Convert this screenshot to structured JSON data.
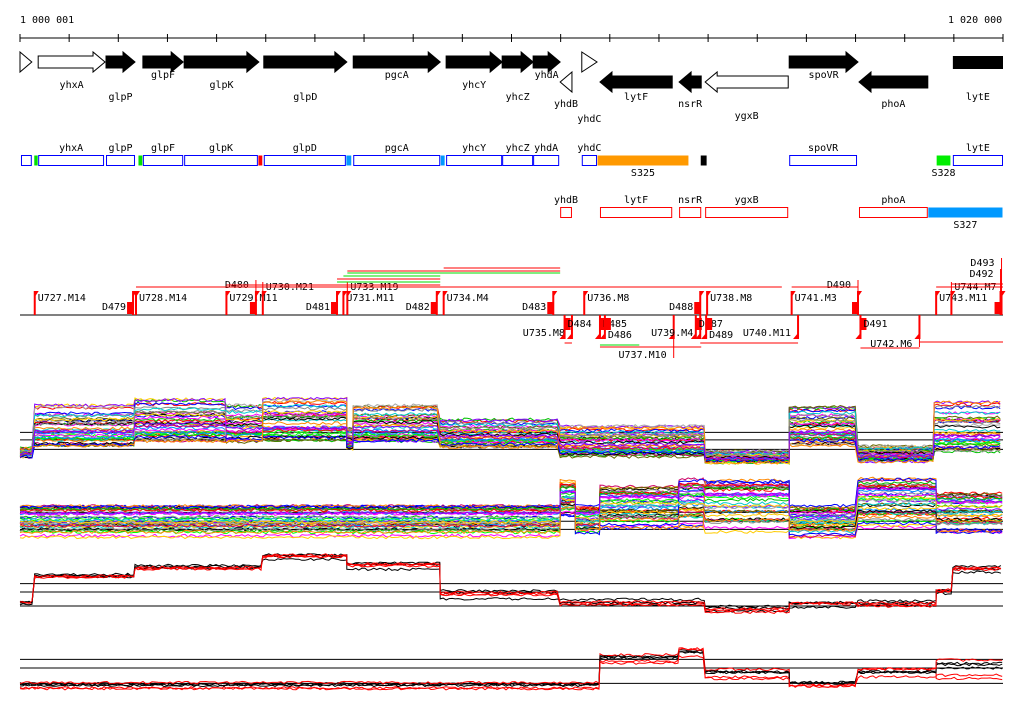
{
  "ruler": {
    "start_label": "1 000 001",
    "end_label": "1 020 000",
    "ticks_kb": 20
  },
  "genes": [
    {
      "name": "",
      "start": 0.0,
      "end": 0.24,
      "strand": "+",
      "style": "open"
    },
    {
      "name": "yhxA",
      "start": 0.37,
      "end": 1.73,
      "strand": "+",
      "style": "open",
      "label_row": 1
    },
    {
      "name": "glpP",
      "start": 1.75,
      "end": 2.34,
      "strand": "+",
      "style": "solid",
      "label_row": 2
    },
    {
      "name": "glpF",
      "start": 2.5,
      "end": 3.32,
      "strand": "+",
      "style": "solid",
      "label_row": 0
    },
    {
      "name": "glpK",
      "start": 3.34,
      "end": 4.86,
      "strand": "+",
      "style": "solid",
      "label_row": 1
    },
    {
      "name": "glpD",
      "start": 4.96,
      "end": 6.65,
      "strand": "+",
      "style": "solid",
      "label_row": 2
    },
    {
      "name": "pgcA",
      "start": 6.78,
      "end": 8.55,
      "strand": "+",
      "style": "solid",
      "label_row": 0
    },
    {
      "name": "yhcY",
      "start": 8.67,
      "end": 9.81,
      "strand": "+",
      "style": "solid",
      "label_row": 1
    },
    {
      "name": "yhcZ",
      "start": 9.81,
      "end": 10.44,
      "strand": "+",
      "style": "solid",
      "label_row": 2
    },
    {
      "name": "yhdA",
      "start": 10.44,
      "end": 10.99,
      "strand": "+",
      "style": "solid",
      "label_row": 0
    },
    {
      "name": "yhdB",
      "start": 10.99,
      "end": 11.23,
      "strand": "-",
      "style": "open",
      "label_row": 3
    },
    {
      "name": "yhdC",
      "start": 11.43,
      "end": 11.74,
      "strand": "+",
      "style": "open",
      "label_row": 2
    },
    {
      "name": "lytF",
      "start": 11.8,
      "end": 13.27,
      "strand": "-",
      "style": "solid",
      "label_row": 2
    },
    {
      "name": "nsrR",
      "start": 13.41,
      "end": 13.86,
      "strand": "-",
      "style": "solid",
      "label_row": 3
    },
    {
      "name": "ygxB",
      "start": 13.94,
      "end": 15.63,
      "strand": "-",
      "style": "open",
      "label_row": 4
    },
    {
      "name": "spoVR",
      "start": 15.65,
      "end": 17.05,
      "strand": "+",
      "style": "solid",
      "label_row": 0
    },
    {
      "name": "phoA",
      "start": 17.07,
      "end": 18.47,
      "strand": "-",
      "style": "solid",
      "label_row": 3
    },
    {
      "name": "lytE",
      "start": 18.98,
      "end": 20.0,
      "strand": "+",
      "style": "bar",
      "label_row": 2
    }
  ],
  "fwd_features": [
    {
      "label": "",
      "start": 0.02,
      "end": 0.24,
      "fill": "none",
      "stroke": "#0000ff"
    },
    {
      "label": "",
      "start": 0.28,
      "end": 0.37,
      "fill": "#00e000",
      "stroke": "none"
    },
    {
      "label": "yhxA",
      "start": 0.37,
      "end": 1.71,
      "fill": "none",
      "stroke": "#0000ff"
    },
    {
      "label": "glpP",
      "start": 1.75,
      "end": 2.34,
      "fill": "none",
      "stroke": "#0000ff"
    },
    {
      "label": "",
      "start": 2.4,
      "end": 2.5,
      "fill": "#00e000",
      "stroke": "none"
    },
    {
      "label": "glpF",
      "start": 2.5,
      "end": 3.32,
      "fill": "none",
      "stroke": "#0000ff"
    },
    {
      "label": "glpK",
      "start": 3.34,
      "end": 4.84,
      "fill": "none",
      "stroke": "#0000ff"
    },
    {
      "label": "",
      "start": 4.84,
      "end": 4.94,
      "fill": "#ff0000",
      "stroke": "none"
    },
    {
      "label": "glpD",
      "start": 4.96,
      "end": 6.63,
      "fill": "none",
      "stroke": "#0000ff"
    },
    {
      "label": "",
      "start": 6.63,
      "end": 6.75,
      "fill": "#0099ff",
      "stroke": "none"
    },
    {
      "label": "pgcA",
      "start": 6.78,
      "end": 8.55,
      "fill": "none",
      "stroke": "#0000ff"
    },
    {
      "label": "",
      "start": 8.55,
      "end": 8.65,
      "fill": "#0099ff",
      "stroke": "none"
    },
    {
      "label": "yhcY",
      "start": 8.67,
      "end": 9.81,
      "fill": "none",
      "stroke": "#0000ff"
    },
    {
      "label": "yhcZ",
      "start": 9.81,
      "end": 10.44,
      "fill": "none",
      "stroke": "#0000ff"
    },
    {
      "label": "yhdA",
      "start": 10.44,
      "end": 10.97,
      "fill": "none",
      "stroke": "#0000ff"
    },
    {
      "label": "yhdC",
      "start": 11.43,
      "end": 11.74,
      "fill": "none",
      "stroke": "#0000ff"
    },
    {
      "label": "S325",
      "start": 11.74,
      "end": 13.61,
      "fill": "#ff9900",
      "stroke": "none",
      "label_below": true
    },
    {
      "label": "",
      "start": 13.84,
      "end": 13.98,
      "fill": "#000000",
      "stroke": "none"
    },
    {
      "label": "spoVR",
      "start": 15.65,
      "end": 17.03,
      "fill": "none",
      "stroke": "#0000ff"
    },
    {
      "label": "S328",
      "start": 18.64,
      "end": 18.94,
      "fill": "#00ee00",
      "stroke": "none",
      "label_below": true
    },
    {
      "label": "lytE",
      "start": 18.98,
      "end": 20.0,
      "fill": "none",
      "stroke": "#0000ff"
    }
  ],
  "rev_features": [
    {
      "label": "yhdB",
      "start": 10.99,
      "end": 11.23,
      "fill": "none",
      "stroke": "#ff0000"
    },
    {
      "label": "lytF",
      "start": 11.8,
      "end": 13.27,
      "fill": "none",
      "stroke": "#ff0000"
    },
    {
      "label": "nsrR",
      "start": 13.41,
      "end": 13.86,
      "fill": "none",
      "stroke": "#ff0000"
    },
    {
      "label": "ygxB",
      "start": 13.94,
      "end": 15.63,
      "fill": "none",
      "stroke": "#ff0000"
    },
    {
      "label": "phoA",
      "start": 17.07,
      "end": 18.47,
      "fill": "none",
      "stroke": "#ff0000"
    },
    {
      "label": "S327",
      "start": 18.47,
      "end": 20.0,
      "fill": "#0099ff",
      "stroke": "none",
      "label_below": true
    }
  ],
  "breakpoints_above": [
    {
      "label": "U727.M14",
      "pos": 0.3
    },
    {
      "label": "D479",
      "pos": 2.3,
      "right": true
    },
    {
      "label": "U728.M14",
      "pos": 2.36
    },
    {
      "label": "U729.M11",
      "pos": 4.2
    },
    {
      "label": "D480",
      "pos": 4.8,
      "right": true
    },
    {
      "label": "U730.M21",
      "pos": 4.94
    },
    {
      "label": "D481",
      "pos": 6.45,
      "right": true
    },
    {
      "label": "U731.M11",
      "pos": 6.58
    },
    {
      "label": "U733.M19",
      "pos": 6.66
    },
    {
      "label": "D482",
      "pos": 8.48,
      "right": true
    },
    {
      "label": "U734.M4",
      "pos": 8.62
    },
    {
      "label": "D483",
      "pos": 10.85,
      "right": true
    },
    {
      "label": "U736.M8",
      "pos": 11.48
    },
    {
      "label": "D488",
      "pos": 13.84,
      "right": true
    },
    {
      "label": "U738.M8",
      "pos": 13.98
    },
    {
      "label": "U741.M3",
      "pos": 15.7
    },
    {
      "label": "D490",
      "pos": 17.05,
      "right": true
    },
    {
      "label": "U743.M11",
      "pos": 18.64
    },
    {
      "label": "U744.M7",
      "pos": 18.95
    },
    {
      "label": "D492",
      "pos": 19.95,
      "right": true
    },
    {
      "label": "D493",
      "pos": 19.97,
      "right": true
    }
  ],
  "breakpoints_below": [
    {
      "label": "U735.M8",
      "pos": 11.23,
      "right": true
    },
    {
      "label": "D484",
      "pos": 11.08
    },
    {
      "label": "D485",
      "pos": 11.8
    },
    {
      "label": "D486",
      "pos": 11.9
    },
    {
      "label": "U737.M10",
      "pos": 13.3,
      "right": true
    },
    {
      "label": "U739.M4",
      "pos": 13.84,
      "right": true
    },
    {
      "label": "D487",
      "pos": 13.75
    },
    {
      "label": "D489",
      "pos": 13.96
    },
    {
      "label": "U740.M11",
      "pos": 15.83,
      "right": true
    },
    {
      "label": "D491",
      "pos": 17.1
    },
    {
      "label": "U742.M6",
      "pos": 18.3,
      "right": true
    }
  ],
  "expression_tracks": [
    {
      "name": "track-1",
      "colors": "rainbow",
      "lines": 40,
      "refs": [
        0.55,
        0.66,
        0.8
      ],
      "segments": [
        [
          0,
          0.3,
          0.78,
          0.92
        ],
        [
          0.3,
          2.34,
          0.15,
          0.78
        ],
        [
          2.34,
          4.2,
          0.05,
          0.7
        ],
        [
          4.2,
          4.94,
          0.15,
          0.7
        ],
        [
          4.94,
          6.65,
          0.05,
          0.7
        ],
        [
          6.65,
          6.78,
          0.5,
          0.8
        ],
        [
          6.78,
          8.55,
          0.15,
          0.7
        ],
        [
          8.55,
          10.99,
          0.35,
          0.78
        ],
        [
          10.99,
          13.94,
          0.45,
          0.92
        ],
        [
          13.94,
          15.65,
          0.82,
          1.0
        ],
        [
          15.65,
          17.05,
          0.15,
          0.75
        ],
        [
          17.05,
          18.6,
          0.75,
          0.98
        ],
        [
          18.6,
          20,
          0.08,
          0.85
        ]
      ]
    },
    {
      "name": "track-2",
      "colors": "rainbow",
      "lines": 40,
      "refs": [
        0.55,
        0.68,
        0.8
      ],
      "segments": [
        [
          0,
          10.99,
          0.45,
          0.92
        ],
        [
          10.99,
          11.3,
          0.08,
          0.6
        ],
        [
          11.3,
          11.8,
          0.45,
          0.9
        ],
        [
          11.8,
          13.41,
          0.15,
          0.78
        ],
        [
          13.41,
          13.94,
          0.05,
          0.78
        ],
        [
          13.94,
          15.65,
          0.08,
          0.85
        ],
        [
          15.65,
          17.05,
          0.45,
          0.92
        ],
        [
          17.05,
          18.64,
          0.05,
          0.78
        ],
        [
          18.64,
          20,
          0.2,
          0.85
        ]
      ]
    },
    {
      "name": "track-3",
      "colors": "blackred",
      "lines": 6,
      "refs": [
        0.48,
        0.6,
        0.8
      ],
      "segments": [
        [
          0,
          0.3,
          0.72,
          0.78
        ],
        [
          0.3,
          2.34,
          0.35,
          0.42
        ],
        [
          2.34,
          4.94,
          0.22,
          0.3
        ],
        [
          4.94,
          6.65,
          0.04,
          0.14
        ],
        [
          6.65,
          8.55,
          0.15,
          0.28
        ],
        [
          8.55,
          10.99,
          0.55,
          0.7
        ],
        [
          10.99,
          13.94,
          0.7,
          0.86
        ],
        [
          13.94,
          15.65,
          0.8,
          0.95
        ],
        [
          15.65,
          17.05,
          0.72,
          0.82
        ],
        [
          17.05,
          18.64,
          0.72,
          0.86
        ],
        [
          18.64,
          18.98,
          0.55,
          0.62
        ],
        [
          18.98,
          20,
          0.22,
          0.32
        ]
      ]
    },
    {
      "name": "track-4",
      "colors": "blackred",
      "lines": 6,
      "refs": [
        0.3,
        0.48,
        0.8
      ],
      "segments": [
        [
          0,
          11.8,
          0.78,
          0.92
        ],
        [
          11.8,
          13.41,
          0.2,
          0.38
        ],
        [
          13.41,
          13.94,
          0.08,
          0.3
        ],
        [
          13.94,
          15.65,
          0.5,
          0.7
        ],
        [
          15.65,
          17.05,
          0.76,
          0.86
        ],
        [
          17.05,
          18.64,
          0.5,
          0.7
        ],
        [
          18.64,
          20,
          0.3,
          0.7
        ]
      ]
    }
  ]
}
